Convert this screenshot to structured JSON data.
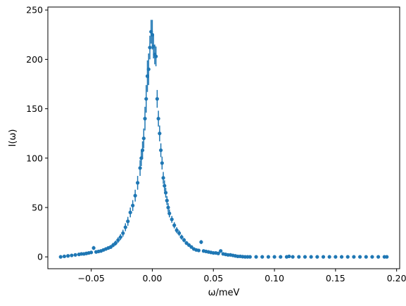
{
  "chart_data": {
    "type": "scatter",
    "title": "",
    "xlabel": "ω/meV",
    "ylabel": "I(ω)",
    "xlim": [
      -0.0855,
      0.2025
    ],
    "ylim": [
      -12,
      253
    ],
    "x_ticks": [
      -0.05,
      0.0,
      0.05,
      0.1,
      0.15,
      0.2
    ],
    "x_tick_labels": [
      "−0.05",
      "0.00",
      "0.05",
      "0.10",
      "0.15",
      "0.20"
    ],
    "y_ticks": [
      0,
      50,
      100,
      150,
      200,
      250
    ],
    "y_tick_labels": [
      "0",
      "50",
      "100",
      "150",
      "200",
      "250"
    ],
    "grid": false,
    "legend": "none",
    "color": "#1f77b4",
    "series": [
      {
        "x": [
          -0.075,
          -0.072,
          -0.069,
          -0.066,
          -0.063,
          -0.06,
          -0.058,
          -0.056,
          -0.054,
          -0.052,
          -0.05,
          -0.048,
          -0.046,
          -0.044,
          -0.042,
          -0.04,
          -0.038,
          -0.036,
          -0.034,
          -0.032,
          -0.03,
          -0.028,
          -0.026,
          -0.024,
          -0.022,
          -0.02,
          -0.018,
          -0.016,
          -0.014,
          -0.012,
          -0.01,
          -0.009,
          -0.008,
          -0.007,
          -0.006,
          -0.005,
          -0.004,
          -0.003,
          -0.002,
          -0.001,
          0.0,
          0.001,
          0.002,
          0.003,
          0.004,
          0.005,
          0.006,
          0.007,
          0.008,
          0.009,
          0.01,
          0.011,
          0.012,
          0.013,
          0.014,
          0.016,
          0.018,
          0.02,
          0.022,
          0.024,
          0.026,
          0.028,
          0.03,
          0.032,
          0.034,
          0.036,
          0.038,
          0.04,
          0.042,
          0.044,
          0.046,
          0.048,
          0.05,
          0.052,
          0.054,
          0.056,
          0.058,
          0.06,
          0.062,
          0.064,
          0.066,
          0.068,
          0.07,
          0.072,
          0.074,
          0.076,
          0.078,
          0.08,
          0.085,
          0.09,
          0.095,
          0.1,
          0.105,
          0.11,
          0.112,
          0.115,
          0.12,
          0.125,
          0.13,
          0.135,
          0.14,
          0.145,
          0.15,
          0.155,
          0.16,
          0.165,
          0.17,
          0.175,
          0.18,
          0.185,
          0.19,
          0.192
        ],
        "y": [
          0,
          0.5,
          1,
          1.5,
          2,
          2.5,
          3,
          3,
          3.5,
          4,
          4.5,
          9,
          5,
          5.5,
          6,
          7,
          8,
          9,
          10,
          12,
          14,
          17,
          20,
          24,
          30,
          36,
          45,
          52,
          62,
          75,
          90,
          100,
          108,
          120,
          140,
          160,
          183,
          190,
          212,
          228,
          225,
          213,
          205,
          203,
          160,
          140,
          125,
          108,
          95,
          80,
          72,
          65,
          57,
          50,
          44,
          38,
          32,
          27,
          24,
          20,
          17,
          14,
          12,
          10,
          8,
          7,
          6.5,
          15,
          6,
          5.5,
          5,
          4.5,
          4,
          4,
          3.5,
          6,
          3,
          2.5,
          2,
          2,
          1.5,
          1,
          0.5,
          0.5,
          0.2,
          0,
          0,
          0,
          0,
          0,
          0,
          0,
          0,
          0,
          0.5,
          0,
          0,
          0,
          0,
          0,
          0,
          0,
          0,
          0,
          0,
          0,
          0,
          0,
          0,
          0,
          0,
          0
        ],
        "yerr": [
          0.5,
          0.5,
          0.5,
          0.5,
          0.6,
          0.7,
          0.8,
          0.8,
          0.9,
          1,
          1.2,
          2,
          1.2,
          1.3,
          1.4,
          1.5,
          1.6,
          1.8,
          2,
          2.2,
          2.5,
          2.8,
          3,
          3.5,
          4,
          4.5,
          5,
          5.5,
          6,
          7,
          8,
          8,
          9,
          10,
          12,
          14,
          16,
          16,
          12,
          12,
          15,
          12,
          10,
          10,
          9,
          8,
          8,
          7,
          6.5,
          6,
          5.5,
          5,
          4.5,
          4.5,
          4,
          3.5,
          3.2,
          3,
          2.8,
          2.5,
          2.2,
          2,
          1.8,
          1.6,
          1.5,
          1.4,
          1.3,
          2,
          1.2,
          1.1,
          1,
          1,
          0.9,
          0.9,
          0.8,
          1,
          0.7,
          0.6,
          0.5,
          0.5,
          0.4,
          0.4,
          0.3,
          0.3,
          0.2,
          0.2,
          0.2,
          0.2,
          0.2,
          0.2,
          0.2,
          0.2,
          0.2,
          0.2,
          0.3,
          0.2,
          0.2,
          0.2,
          0.2,
          0.2,
          0.2,
          0.2,
          0.2,
          0.2,
          0.2,
          0.2,
          0.2,
          0.2,
          0.2,
          0.2,
          0.2,
          0.2
        ]
      }
    ]
  }
}
